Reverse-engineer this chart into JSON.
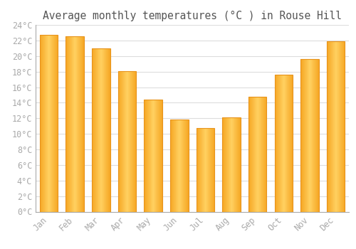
{
  "title": "Average monthly temperatures (°C ) in Rouse Hill",
  "months": [
    "Jan",
    "Feb",
    "Mar",
    "Apr",
    "May",
    "Jun",
    "Jul",
    "Aug",
    "Sep",
    "Oct",
    "Nov",
    "Dec"
  ],
  "temperatures": [
    22.7,
    22.5,
    21.0,
    18.1,
    14.4,
    11.8,
    10.7,
    12.1,
    14.8,
    17.6,
    19.6,
    21.9
  ],
  "bar_color_left": "#F5A623",
  "bar_color_center": "#FFD060",
  "bar_color_right": "#F5A623",
  "bar_bottom_color": "#F5A623",
  "ylim": [
    0,
    24
  ],
  "ytick_step": 2,
  "background_color": "#FFFFFF",
  "grid_color": "#DDDDDD",
  "title_color": "#555555",
  "tick_label_color": "#AAAAAA",
  "title_fontsize": 10.5,
  "tick_fontsize": 8.5,
  "bar_width": 0.7,
  "bar_edge_color": "#E8931A",
  "bar_edge_width": 0.5
}
